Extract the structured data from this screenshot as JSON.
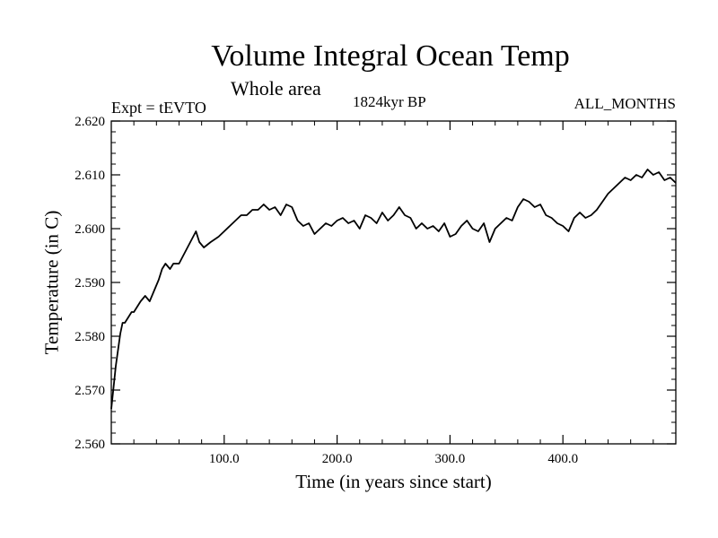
{
  "chart_data": {
    "type": "line",
    "title": "Volume Integral Ocean Temp",
    "subtitle": "Whole area",
    "experiment": "Expt = tEVTO",
    "period": "1824kyr BP",
    "months": "ALL_MONTHS",
    "xlabel": "Time (in years since start)",
    "ylabel": "Temperature (in C)",
    "xlim": [
      0,
      500
    ],
    "ylim": [
      2.56,
      2.62
    ],
    "x_ticks": [
      100,
      200,
      300,
      400
    ],
    "x_tick_labels": [
      "100.0",
      "200.0",
      "300.0",
      "400.0"
    ],
    "y_ticks": [
      2.56,
      2.57,
      2.58,
      2.59,
      2.6,
      2.61,
      2.62
    ],
    "y_tick_labels": [
      "2.560",
      "2.570",
      "2.580",
      "2.590",
      "2.600",
      "2.610",
      "2.620"
    ],
    "series": [
      {
        "name": "Volume Integral Ocean Temp",
        "x": [
          0,
          2,
          4,
          6,
          8,
          10,
          12,
          15,
          18,
          20,
          23,
          26,
          30,
          34,
          38,
          42,
          45,
          48,
          52,
          55,
          60,
          65,
          70,
          75,
          78,
          82,
          88,
          95,
          100,
          105,
          110,
          115,
          120,
          125,
          130,
          135,
          140,
          145,
          150,
          155,
          160,
          165,
          170,
          175,
          180,
          185,
          190,
          195,
          200,
          205,
          210,
          215,
          220,
          225,
          230,
          235,
          240,
          245,
          250,
          255,
          260,
          265,
          270,
          275,
          280,
          285,
          290,
          295,
          300,
          305,
          310,
          315,
          320,
          325,
          330,
          335,
          340,
          345,
          350,
          355,
          360,
          365,
          370,
          375,
          380,
          385,
          390,
          395,
          400,
          405,
          410,
          415,
          420,
          425,
          430,
          435,
          440,
          445,
          450,
          455,
          460,
          465,
          470,
          475,
          480,
          485,
          490,
          495,
          500
        ],
        "values": [
          2.5665,
          2.5705,
          2.5745,
          2.5775,
          2.5805,
          2.5825,
          2.5825,
          2.5835,
          2.5845,
          2.5845,
          2.5855,
          2.5865,
          2.5875,
          2.5865,
          2.5885,
          2.5905,
          2.5925,
          2.5935,
          2.5925,
          2.5935,
          2.5935,
          2.5955,
          2.5975,
          2.5995,
          2.5975,
          2.5965,
          2.5975,
          2.5985,
          2.5995,
          2.6005,
          2.6015,
          2.6025,
          2.6025,
          2.6035,
          2.6035,
          2.6045,
          2.6035,
          2.604,
          2.6025,
          2.6045,
          2.604,
          2.6015,
          2.6005,
          2.601,
          2.599,
          2.6,
          2.601,
          2.6005,
          2.6015,
          2.602,
          2.601,
          2.6015,
          2.6,
          2.6025,
          2.602,
          2.601,
          2.603,
          2.6015,
          2.6025,
          2.604,
          2.6025,
          2.602,
          2.6,
          2.601,
          2.6,
          2.6005,
          2.5995,
          2.601,
          2.5985,
          2.599,
          2.6005,
          2.6015,
          2.6,
          2.5995,
          2.601,
          2.5975,
          2.6,
          2.601,
          2.602,
          2.6015,
          2.604,
          2.6055,
          2.605,
          2.604,
          2.6045,
          2.6025,
          2.602,
          2.601,
          2.6005,
          2.5995,
          2.602,
          2.603,
          2.602,
          2.6025,
          2.6035,
          2.605,
          2.6065,
          2.6075,
          2.6085,
          2.6095,
          2.609,
          2.61,
          2.6095,
          2.611,
          2.61,
          2.6105,
          2.609,
          2.6095,
          2.6085
        ]
      }
    ]
  }
}
